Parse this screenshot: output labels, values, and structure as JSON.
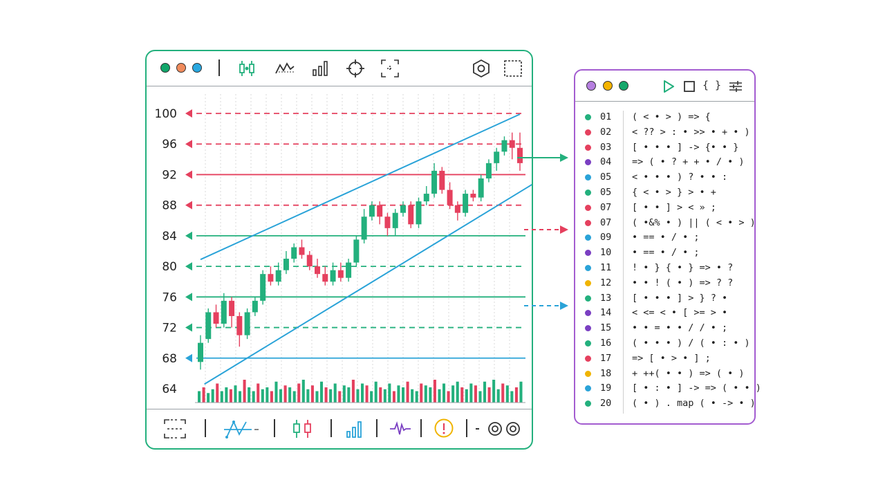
{
  "colors": {
    "green": "#23b07d",
    "red": "#e5405e",
    "blue": "#2aa3d8",
    "purple": "#7a3fc2",
    "yellow": "#f0b400",
    "window_border_chart": "#23b07d",
    "window_border_code": "#a35cd0"
  },
  "chart_window": {
    "traffic_lights": [
      "#12a66a",
      "#f08b5c",
      "#29a8e0"
    ],
    "toolbar_icons": [
      "candlestick-icon",
      "line-chart-icon",
      "bar-chart-icon",
      "crosshair-icon",
      "select-area-icon",
      "settings-hexagon-icon",
      "fullscreen-icon"
    ],
    "bottom_icons": [
      "select-area-icon",
      "indicator-line-icon",
      "candlestick-icon",
      "bar-chart-icon",
      "waveform-icon",
      "alert-icon",
      "settings-gears-icon"
    ]
  },
  "chart_data": {
    "type": "candlestick",
    "y_ticks": [
      64,
      68,
      72,
      76,
      80,
      84,
      88,
      92,
      96,
      100
    ],
    "ylim": [
      63,
      101
    ],
    "grid": "vertical-dotted",
    "candles": [
      {
        "o": 67.5,
        "c": 70.0,
        "h": 71.0,
        "l": 66.5,
        "up": true
      },
      {
        "o": 70.5,
        "c": 74.0,
        "h": 74.5,
        "l": 70.0,
        "up": true
      },
      {
        "o": 74.0,
        "c": 72.5,
        "h": 75.0,
        "l": 72.0,
        "up": false
      },
      {
        "o": 72.5,
        "c": 75.5,
        "h": 76.5,
        "l": 72.0,
        "up": true
      },
      {
        "o": 75.5,
        "c": 73.5,
        "h": 76.0,
        "l": 72.0,
        "up": false
      },
      {
        "o": 73.5,
        "c": 71.0,
        "h": 74.0,
        "l": 69.5,
        "up": false
      },
      {
        "o": 71.0,
        "c": 74.0,
        "h": 74.5,
        "l": 70.5,
        "up": true
      },
      {
        "o": 74.0,
        "c": 75.5,
        "h": 76.0,
        "l": 73.5,
        "up": true
      },
      {
        "o": 75.5,
        "c": 79.0,
        "h": 79.5,
        "l": 75.0,
        "up": true
      },
      {
        "o": 79.0,
        "c": 78.0,
        "h": 80.0,
        "l": 77.5,
        "up": false
      },
      {
        "o": 78.0,
        "c": 79.5,
        "h": 80.5,
        "l": 77.5,
        "up": true
      },
      {
        "o": 79.5,
        "c": 81.0,
        "h": 82.0,
        "l": 79.0,
        "up": true
      },
      {
        "o": 81.0,
        "c": 82.5,
        "h": 83.0,
        "l": 80.5,
        "up": true
      },
      {
        "o": 82.5,
        "c": 81.5,
        "h": 83.5,
        "l": 81.0,
        "up": false
      },
      {
        "o": 81.5,
        "c": 80.0,
        "h": 82.0,
        "l": 79.5,
        "up": false
      },
      {
        "o": 80.0,
        "c": 79.0,
        "h": 81.0,
        "l": 78.5,
        "up": false
      },
      {
        "o": 79.0,
        "c": 78.0,
        "h": 80.0,
        "l": 77.5,
        "up": false
      },
      {
        "o": 78.0,
        "c": 79.5,
        "h": 80.5,
        "l": 77.5,
        "up": true
      },
      {
        "o": 79.5,
        "c": 78.5,
        "h": 80.5,
        "l": 78.0,
        "up": false
      },
      {
        "o": 78.5,
        "c": 80.5,
        "h": 81.0,
        "l": 78.0,
        "up": true
      },
      {
        "o": 80.5,
        "c": 83.5,
        "h": 84.0,
        "l": 80.0,
        "up": true
      },
      {
        "o": 83.5,
        "c": 86.5,
        "h": 87.5,
        "l": 83.0,
        "up": true
      },
      {
        "o": 86.5,
        "c": 88.0,
        "h": 88.5,
        "l": 86.0,
        "up": true
      },
      {
        "o": 88.0,
        "c": 86.5,
        "h": 88.5,
        "l": 85.5,
        "up": false
      },
      {
        "o": 86.5,
        "c": 85.0,
        "h": 87.0,
        "l": 84.0,
        "up": false
      },
      {
        "o": 85.0,
        "c": 87.0,
        "h": 87.5,
        "l": 84.0,
        "up": true
      },
      {
        "o": 87.0,
        "c": 88.0,
        "h": 88.5,
        "l": 86.5,
        "up": true
      },
      {
        "o": 88.0,
        "c": 85.5,
        "h": 88.5,
        "l": 85.0,
        "up": false
      },
      {
        "o": 85.5,
        "c": 88.5,
        "h": 89.0,
        "l": 85.0,
        "up": true
      },
      {
        "o": 88.5,
        "c": 89.5,
        "h": 90.5,
        "l": 88.0,
        "up": true
      },
      {
        "o": 89.5,
        "c": 92.5,
        "h": 93.5,
        "l": 89.0,
        "up": true
      },
      {
        "o": 92.5,
        "c": 90.0,
        "h": 93.0,
        "l": 89.5,
        "up": false
      },
      {
        "o": 90.0,
        "c": 88.0,
        "h": 91.0,
        "l": 87.5,
        "up": false
      },
      {
        "o": 88.0,
        "c": 87.0,
        "h": 88.5,
        "l": 86.0,
        "up": false
      },
      {
        "o": 87.0,
        "c": 89.5,
        "h": 90.0,
        "l": 86.5,
        "up": true
      },
      {
        "o": 89.5,
        "c": 89.0,
        "h": 90.0,
        "l": 88.5,
        "up": false
      },
      {
        "o": 89.0,
        "c": 91.5,
        "h": 92.0,
        "l": 88.5,
        "up": true
      },
      {
        "o": 91.5,
        "c": 93.5,
        "h": 94.0,
        "l": 91.0,
        "up": true
      },
      {
        "o": 93.5,
        "c": 95.0,
        "h": 95.5,
        "l": 92.5,
        "up": true
      },
      {
        "o": 95.0,
        "c": 96.5,
        "h": 97.0,
        "l": 94.5,
        "up": true
      },
      {
        "o": 96.5,
        "c": 95.5,
        "h": 97.5,
        "l": 94.0,
        "up": false
      },
      {
        "o": 95.5,
        "c": 93.5,
        "h": 97.5,
        "l": 92.5,
        "up": false
      }
    ],
    "horizontal_levels": [
      {
        "y": 100,
        "color": "#e5405e",
        "style": "dashed"
      },
      {
        "y": 96,
        "color": "#e5405e",
        "style": "dashed"
      },
      {
        "y": 92,
        "color": "#e5405e",
        "style": "solid"
      },
      {
        "y": 88,
        "color": "#e5405e",
        "style": "dashed"
      },
      {
        "y": 84,
        "color": "#23b07d",
        "style": "solid"
      },
      {
        "y": 80,
        "color": "#23b07d",
        "style": "dashed"
      },
      {
        "y": 76,
        "color": "#23b07d",
        "style": "solid"
      },
      {
        "y": 72,
        "color": "#23b07d",
        "style": "dashed"
      },
      {
        "y": 68,
        "color": "#2aa3d8",
        "style": "solid"
      }
    ],
    "channel_lines": [
      {
        "from": [
          0,
          80.9
        ],
        "to": [
          41,
          99.9
        ]
      },
      {
        "from": [
          0.5,
          64.6
        ],
        "to": [
          44,
          91.6
        ]
      }
    ],
    "volume": [
      0.3,
      0.4,
      0.25,
      0.35,
      0.5,
      0.3,
      0.4,
      0.35,
      0.45,
      0.3,
      0.6,
      0.4,
      0.3,
      0.5,
      0.35,
      0.4,
      0.3,
      0.55,
      0.35,
      0.45,
      0.4,
      0.3,
      0.5,
      0.6,
      0.35,
      0.45,
      0.3,
      0.55,
      0.4,
      0.35,
      0.5,
      0.3,
      0.45,
      0.4,
      0.6,
      0.35,
      0.5,
      0.45,
      0.3,
      0.55,
      0.4,
      0.35,
      0.5,
      0.3,
      0.45,
      0.4,
      0.55,
      0.35,
      0.3,
      0.5,
      0.45,
      0.4,
      0.6,
      0.35,
      0.5,
      0.3,
      0.45,
      0.55,
      0.4,
      0.35,
      0.5,
      0.45,
      0.3,
      0.55,
      0.4,
      0.6,
      0.35,
      0.5,
      0.45,
      0.3,
      0.4,
      0.55
    ]
  },
  "code_window": {
    "traffic_lights": [
      "#b67fe0",
      "#f5b400",
      "#15a86b"
    ],
    "toolbar_icons": [
      "play-icon",
      "stop-icon",
      "braces-icon",
      "sliders-icon"
    ],
    "braces_glyph": "{ }",
    "lines": [
      {
        "num": "01",
        "text": "( < • > ) => {",
        "dot": "#23b07d"
      },
      {
        "num": "02",
        "text": "< ?? > : • >> • + • )",
        "dot": "#e5405e"
      },
      {
        "num": "03",
        "text": "[ • • • ] -> {• • }",
        "dot": "#e5405e"
      },
      {
        "num": "04",
        "text": "=> ( • ? + + • / • )",
        "dot": "#7a3fc2"
      },
      {
        "num": "05",
        "text": "< • • • ) ? • • :",
        "dot": "#2aa3d8"
      },
      {
        "num": "05",
        "text": "{ < • > } > • +",
        "dot": "#23b07d"
      },
      {
        "num": "07",
        "text": "[ • • ] > < » ;",
        "dot": "#e5405e"
      },
      {
        "num": "07",
        "text": "( •&% • ) || ( < • > )",
        "dot": "#e5405e"
      },
      {
        "num": "09",
        "text": "• == • / • ;",
        "dot": "#2aa3d8"
      },
      {
        "num": "10",
        "text": "• == • / • ;",
        "dot": "#7a3fc2"
      },
      {
        "num": "11",
        "text": "! • } { • } => • ?",
        "dot": "#2aa3d8"
      },
      {
        "num": "12",
        "text": "• • ! ( • ) => ? ?",
        "dot": "#f0b400"
      },
      {
        "num": "13",
        "text": "[ • • • ] > } ? •",
        "dot": "#23b07d"
      },
      {
        "num": "14",
        "text": "< <= < • [ >= > •",
        "dot": "#7a3fc2"
      },
      {
        "num": "15",
        "text": "• • = • • / / • ;",
        "dot": "#7a3fc2"
      },
      {
        "num": "16",
        "text": "( • • • ) / ( • : • )",
        "dot": "#23b07d"
      },
      {
        "num": "17",
        "text": "=> [ • > • ] ;",
        "dot": "#e5405e"
      },
      {
        "num": "18",
        "text": "+ ++( • • ) => ( • )",
        "dot": "#f0b400"
      },
      {
        "num": "19",
        "text": "[ • : • ] -> => ( • • )",
        "dot": "#2aa3d8"
      },
      {
        "num": "20",
        "text": "( • ) . map ( • -> • )",
        "dot": "#23b07d"
      }
    ]
  },
  "connectors": [
    {
      "color": "#23b07d",
      "style": "solid"
    },
    {
      "color": "#e5405e",
      "style": "dashed"
    },
    {
      "color": "#2aa3d8",
      "style": "dashed"
    }
  ]
}
